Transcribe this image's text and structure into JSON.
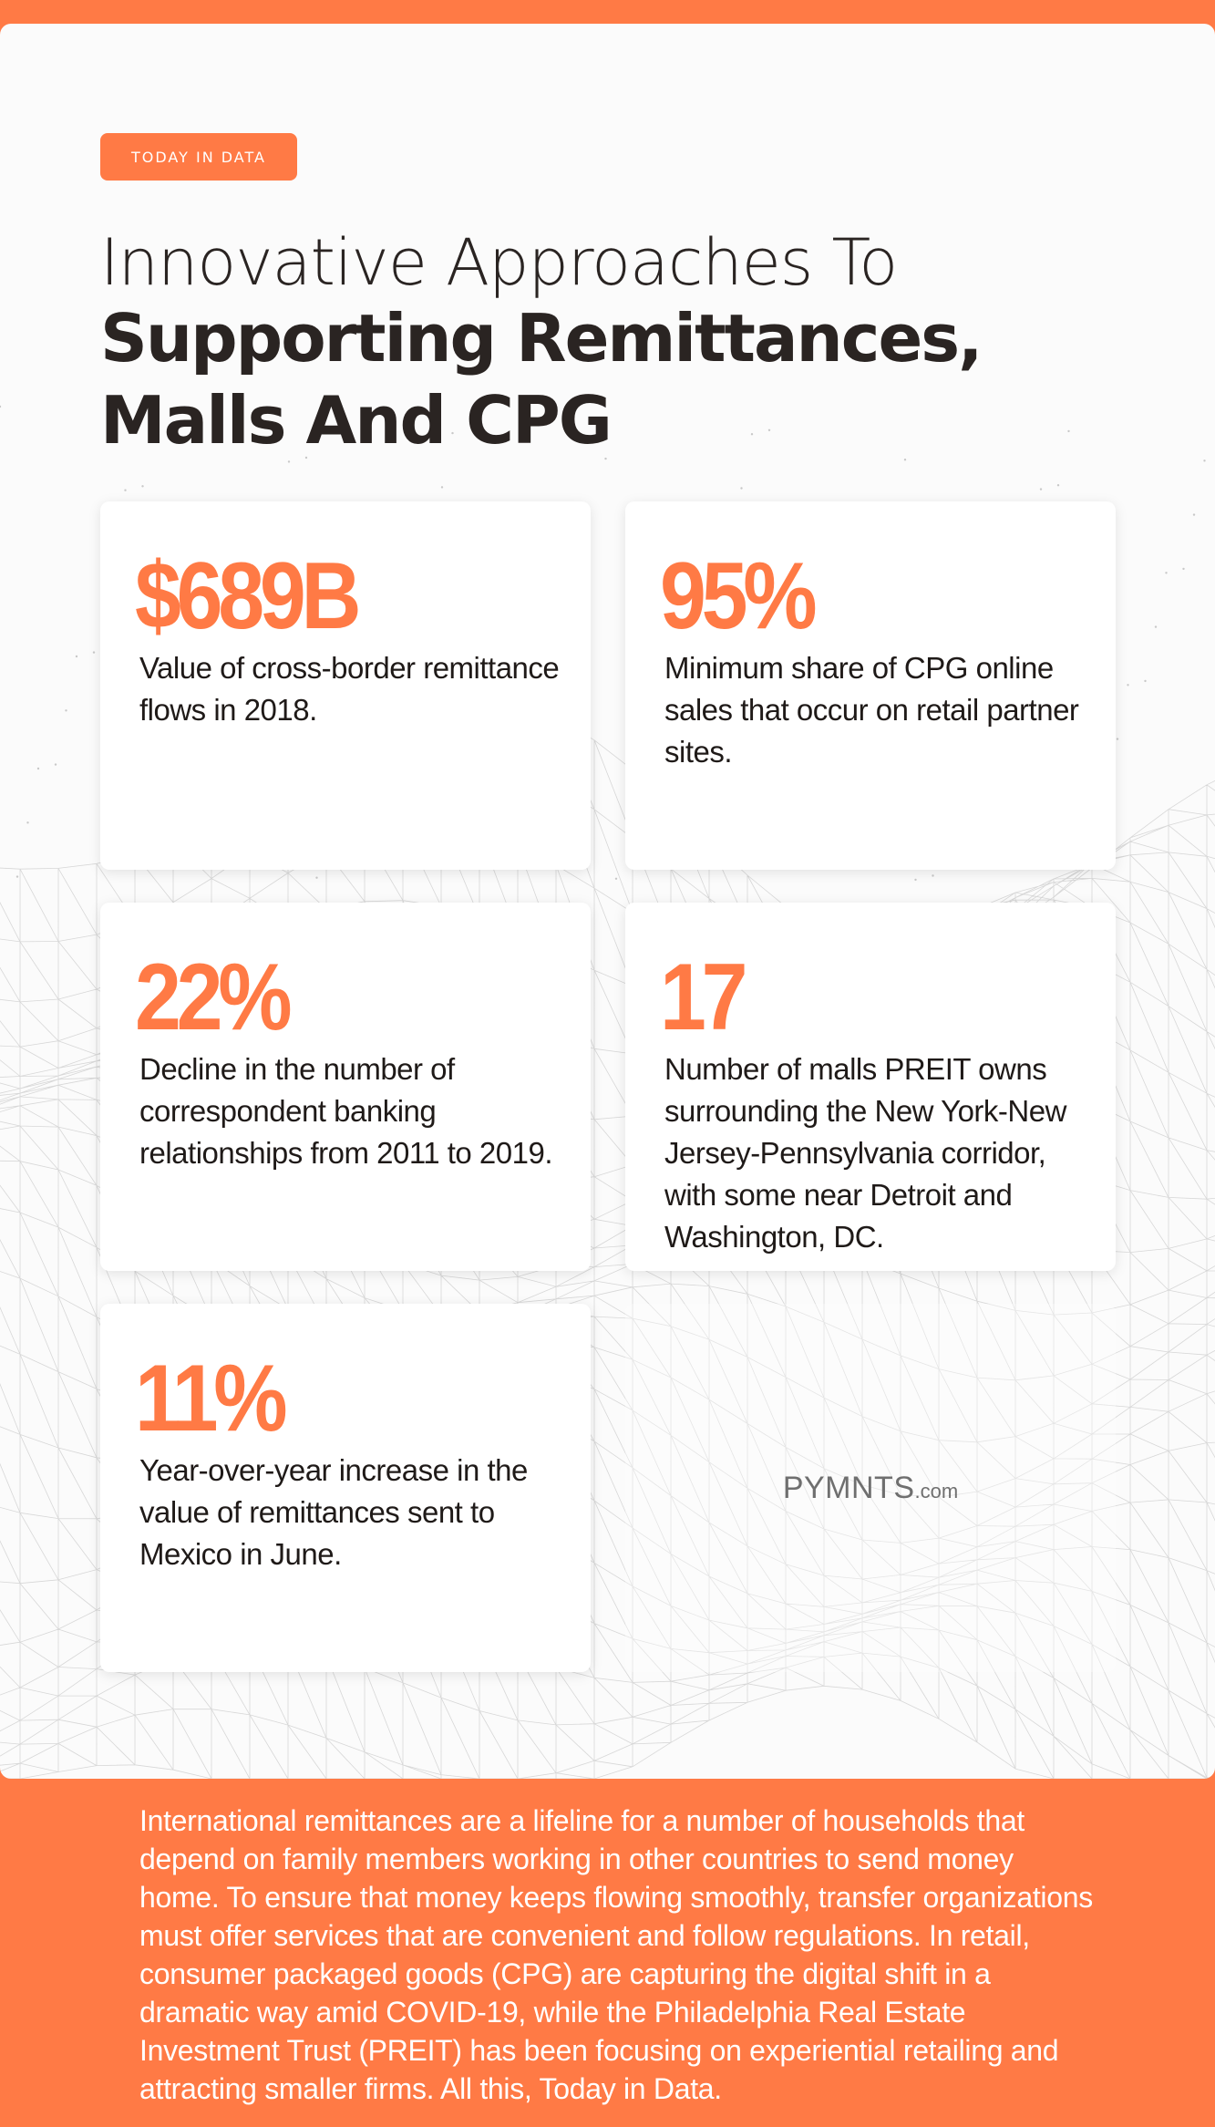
{
  "header": {
    "tag": "TODAY IN DATA",
    "title_line1": "Innovative Approaches To",
    "title_bold": "Supporting Remittances, Malls And CPG"
  },
  "cards": [
    {
      "stat": "$689B",
      "description": "Value of cross-border remittance flows in 2018."
    },
    {
      "stat": "95%",
      "description": "Minimum share of CPG online sales that occur on retail partner sites."
    },
    {
      "stat": "22%",
      "description": "Decline in the number of correspondent banking relationships from 2011 to 2019."
    },
    {
      "stat": "17",
      "description": "Number of malls PREIT owns surrounding the New York-New Jersey-Pennsylvania corridor, with some near Detroit and Washington, DC."
    },
    {
      "stat": "11%",
      "description": "Year-over-year increase in the value of remittances sent to Mexico in June."
    }
  ],
  "logo": {
    "main": "PYMNTS",
    "suffix": ".com"
  },
  "footer": {
    "text": "International remittances are a lifeline for a number of households that depend on family members working in other countries to send money home. To ensure that money keeps flowing smoothly, transfer organizations must offer services that are convenient and follow regulations. In retail, consumer packaged goods (CPG) are capturing the digital shift in a dramatic way amid COVID-19, while the Philadelphia Real Estate Investment Trust (PREIT) has been focusing on experiential retailing and attracting smaller firms. All this, Today in Data."
  },
  "colors": {
    "accent": "#ff7a45",
    "text_dark": "#2a2422",
    "panel": "#fbfbfb"
  }
}
